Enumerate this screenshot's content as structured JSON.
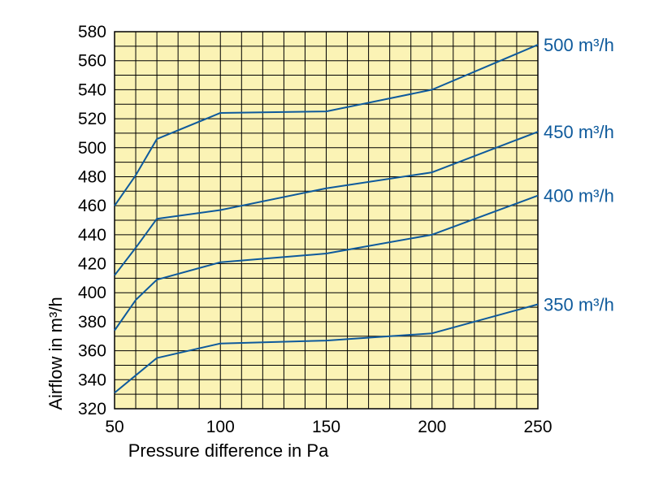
{
  "chart_data": {
    "type": "line",
    "title": "",
    "xlabel": "Pressure difference in Pa",
    "ylabel": "Airflow in m³/h",
    "xlim": [
      50,
      250
    ],
    "ylim": [
      320,
      580
    ],
    "x_ticks": [
      50,
      100,
      150,
      200,
      250
    ],
    "y_ticks": [
      320,
      340,
      360,
      380,
      400,
      420,
      440,
      460,
      480,
      500,
      520,
      540,
      560,
      580
    ],
    "grid": true,
    "legend": "series labels at right end of lines",
    "colors": {
      "plot_bg": "#fbf3b5",
      "grid": "#000000",
      "line": "#0e5a9c"
    },
    "series": [
      {
        "name": "500 m³/h",
        "x": [
          50,
          60,
          70,
          100,
          150,
          200,
          250
        ],
        "y": [
          460,
          481,
          506,
          524,
          525,
          540,
          571
        ]
      },
      {
        "name": "450 m³/h",
        "x": [
          50,
          60,
          70,
          100,
          150,
          200,
          250
        ],
        "y": [
          412,
          431,
          451,
          457,
          472,
          483,
          511
        ]
      },
      {
        "name": "400 m³/h",
        "x": [
          50,
          60,
          70,
          100,
          150,
          200,
          250
        ],
        "y": [
          374,
          395,
          409,
          421,
          427,
          440,
          467
        ]
      },
      {
        "name": "350 m³/h",
        "x": [
          50,
          60,
          70,
          100,
          150,
          200,
          250
        ],
        "y": [
          331,
          343,
          355,
          365,
          367,
          372,
          392
        ]
      }
    ]
  }
}
